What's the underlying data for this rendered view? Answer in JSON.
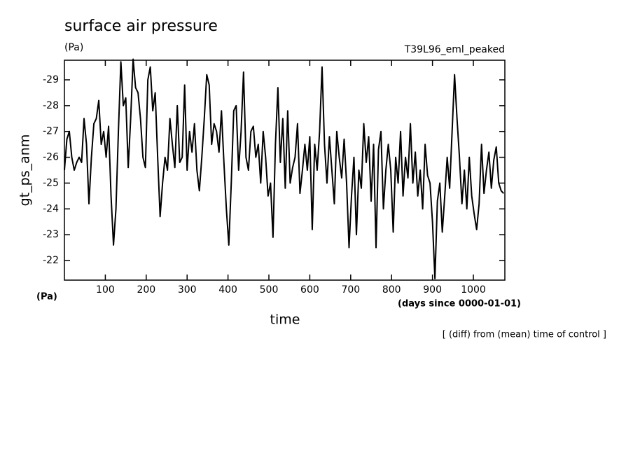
{
  "chart_data": {
    "type": "line",
    "title": "surface air pressure",
    "unit_label": "(Pa)",
    "experiment": "T39L96_eml_peaked",
    "y_label": "gt_ps_anm",
    "y_unit": "(Pa)",
    "x_label": "time",
    "x_unit": "(days since 0000-01-01)",
    "note": "[ (diff) from (mean) time of control ]",
    "color": "#000000",
    "xlim": [
      0,
      1077
    ],
    "xticks": [
      100,
      200,
      300,
      400,
      500,
      600,
      700,
      800,
      900,
      1000
    ],
    "ylim": [
      -21.24,
      -29.76
    ],
    "yticks": [
      -29,
      -28,
      -27,
      -26,
      -25,
      -24,
      -23,
      -22
    ],
    "x": [
      0,
      6,
      12,
      18,
      24,
      30,
      36,
      42,
      48,
      54,
      60,
      66,
      72,
      78,
      84,
      90,
      96,
      102,
      108,
      114,
      120,
      126,
      132,
      138,
      144,
      150,
      156,
      162,
      168,
      174,
      180,
      186,
      192,
      198,
      204,
      210,
      216,
      222,
      228,
      234,
      240,
      246,
      252,
      258,
      264,
      270,
      276,
      282,
      288,
      294,
      300,
      306,
      312,
      318,
      324,
      330,
      336,
      342,
      348,
      354,
      360,
      366,
      372,
      378,
      384,
      390,
      396,
      402,
      408,
      414,
      420,
      426,
      432,
      438,
      444,
      450,
      456,
      462,
      468,
      474,
      480,
      486,
      492,
      498,
      504,
      510,
      516,
      522,
      528,
      534,
      540,
      546,
      552,
      558,
      564,
      570,
      576,
      582,
      588,
      594,
      600,
      606,
      612,
      618,
      624,
      630,
      636,
      642,
      648,
      654,
      660,
      666,
      672,
      678,
      684,
      690,
      696,
      702,
      708,
      714,
      720,
      726,
      732,
      738,
      744,
      750,
      756,
      762,
      768,
      774,
      780,
      786,
      792,
      798,
      804,
      810,
      816,
      822,
      828,
      834,
      840,
      846,
      852,
      858,
      864,
      870,
      876,
      882,
      888,
      894,
      900,
      906,
      912,
      918,
      924,
      930,
      936,
      942,
      948,
      954,
      960,
      966,
      972,
      978,
      984,
      990,
      996,
      1002,
      1008,
      1014,
      1020,
      1026,
      1032,
      1038,
      1044,
      1050,
      1056,
      1062,
      1068,
      1074
    ],
    "values": [
      -25.5,
      -26.7,
      -27,
      -26,
      -25.5,
      -25.8,
      -26,
      -25.8,
      -27.5,
      -26.5,
      -24.2,
      -26,
      -27.3,
      -27.5,
      -28.2,
      -26.5,
      -27,
      -26,
      -27.2,
      -24.5,
      -22.6,
      -24,
      -27,
      -29.7,
      -28,
      -28.3,
      -25.6,
      -27.5,
      -29.8,
      -28.7,
      -28.5,
      -27.5,
      -26,
      -25.6,
      -29,
      -29.5,
      -27.8,
      -28.5,
      -26,
      -23.7,
      -25,
      -26,
      -25.5,
      -27.5,
      -26.5,
      -25.6,
      -28,
      -25.8,
      -26,
      -28.8,
      -25.5,
      -27,
      -26.2,
      -27.3,
      -25.5,
      -24.7,
      -26,
      -27.5,
      -29.2,
      -28.8,
      -26.5,
      -27.3,
      -27,
      -26.2,
      -27.8,
      -25.8,
      -24,
      -22.6,
      -25,
      -27.8,
      -28,
      -25.5,
      -27,
      -29.3,
      -26,
      -25.5,
      -27,
      -27.2,
      -26,
      -26.5,
      -25,
      -27,
      -26,
      -24.5,
      -25,
      -22.9,
      -26.5,
      -28.7,
      -25.8,
      -27.5,
      -24.8,
      -27.8,
      -25,
      -25.6,
      -26,
      -27.3,
      -24.6,
      -25.5,
      -26.5,
      -25.5,
      -26.8,
      -23.2,
      -26.5,
      -25.5,
      -27,
      -29.5,
      -26.5,
      -25,
      -26.8,
      -25.5,
      -24.2,
      -27,
      -26,
      -25.2,
      -26.7,
      -25,
      -22.5,
      -24.5,
      -26,
      -23,
      -25.5,
      -24.8,
      -27.3,
      -25.8,
      -26.8,
      -24.3,
      -26.5,
      -22.5,
      -26.3,
      -27,
      -24,
      -25.5,
      -26.5,
      -25.5,
      -23.1,
      -26,
      -25,
      -27,
      -24.5,
      -26,
      -25.2,
      -27.3,
      -25,
      -26.2,
      -24.5,
      -25.5,
      -24,
      -26.5,
      -25.3,
      -25,
      -23.5,
      -21.3,
      -24.3,
      -25,
      -23.1,
      -24.5,
      -26,
      -24.8,
      -27,
      -29.2,
      -27.5,
      -26,
      -24.2,
      -25.5,
      -24,
      -26,
      -24.5,
      -23.8,
      -23.2,
      -24.2,
      -26.5,
      -24.6,
      -25.5,
      -26.2,
      -24.8,
      -25.9,
      -26.4,
      -25,
      -24.7,
      -24.6
    ]
  }
}
